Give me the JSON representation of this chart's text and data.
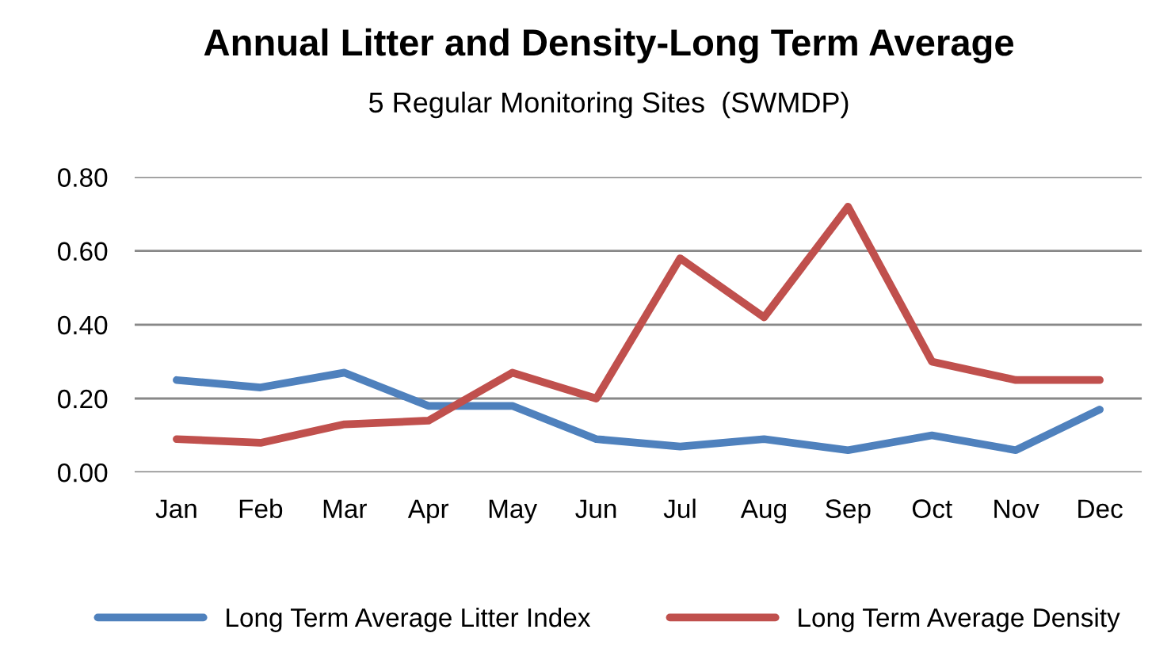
{
  "chart_data": {
    "type": "line",
    "title": "Annual Litter and Density-Long Term Average",
    "subtitle": "5 Regular Monitoring Sites  (SWMDP)",
    "categories": [
      "Jan",
      "Feb",
      "Mar",
      "Apr",
      "May",
      "Jun",
      "Jul",
      "Aug",
      "Sep",
      "Oct",
      "Nov",
      "Dec"
    ],
    "series": [
      {
        "name": "Long Term Average Litter Index",
        "color": "#4f81bd",
        "values": [
          0.25,
          0.23,
          0.27,
          0.18,
          0.18,
          0.09,
          0.07,
          0.09,
          0.06,
          0.1,
          0.06,
          0.17
        ]
      },
      {
        "name": "Long Term Average Density",
        "color": "#c0504d",
        "values": [
          0.09,
          0.08,
          0.13,
          0.14,
          0.27,
          0.2,
          0.58,
          0.42,
          0.72,
          0.3,
          0.25,
          0.25
        ]
      }
    ],
    "ylim": [
      0,
      0.8
    ],
    "yticks": [
      {
        "value": 0,
        "label": "0.00"
      },
      {
        "value": 0.2,
        "label": "0.20"
      },
      {
        "value": 0.4,
        "label": "0.40"
      },
      {
        "value": 0.6,
        "label": "0.60"
      },
      {
        "value": 0.8,
        "label": "0.80"
      }
    ],
    "grid": "y",
    "legend": "bottom",
    "marker": "none",
    "line_style": "solid"
  }
}
